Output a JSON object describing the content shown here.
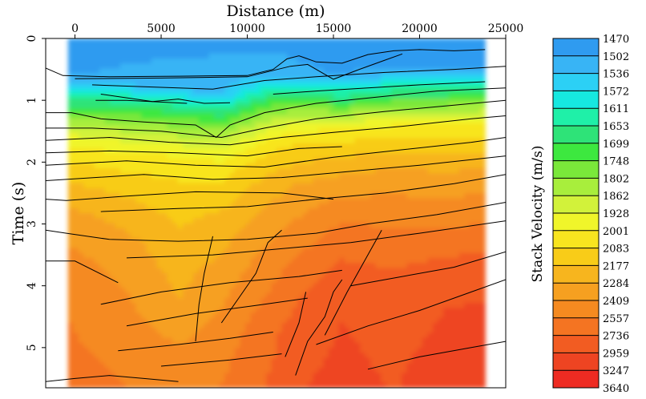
{
  "chart_data": {
    "type": "heatmap",
    "title": "",
    "xlabel": "Distance (m)",
    "ylabel": "Time (s)",
    "xlim": [
      -1700,
      25000
    ],
    "ylim": [
      0,
      5.65
    ],
    "x_ticks": [
      {
        "value": 0,
        "label": "0"
      },
      {
        "value": 5000,
        "label": "5000"
      },
      {
        "value": 10000,
        "label": "10000"
      },
      {
        "value": 15000,
        "label": "15000"
      },
      {
        "value": 20000,
        "label": "20000"
      },
      {
        "value": 25000,
        "label": "25000"
      }
    ],
    "y_ticks": [
      {
        "value": 0,
        "label": "0"
      },
      {
        "value": 1,
        "label": "1"
      },
      {
        "value": 2,
        "label": "2"
      },
      {
        "value": 3,
        "label": "3"
      },
      {
        "value": 4,
        "label": "4"
      },
      {
        "value": 5,
        "label": "5"
      }
    ],
    "data_extent_x": [
      -400,
      23800
    ],
    "colorbar": {
      "label": "Stack Velocity (m/s)",
      "levels": [
        "1470",
        "1502",
        "1536",
        "1572",
        "1611",
        "1653",
        "1699",
        "1748",
        "1802",
        "1862",
        "1928",
        "2001",
        "2083",
        "2177",
        "2284",
        "2409",
        "2557",
        "2736",
        "2959",
        "3247",
        "3640"
      ],
      "colors": [
        "#2f9bf0",
        "#38b4f5",
        "#2cd0f5",
        "#16e8e0",
        "#1ff0a8",
        "#2ee378",
        "#3de83f",
        "#7ae83a",
        "#a8ee3c",
        "#d2f23a",
        "#f0f52a",
        "#f8e51f",
        "#f8cc18",
        "#f7b51e",
        "#f6a020",
        "#f58a20",
        "#f47422",
        "#f25c22",
        "#ee4422",
        "#ee2b22"
      ]
    },
    "velocity_field": {
      "description_units": "velocity in m/s vs time in s, per distance column",
      "columns": [
        {
          "x": -400,
          "profile": [
            [
              0,
              1490
            ],
            [
              0.6,
              1500
            ],
            [
              1.1,
              1700
            ],
            [
              1.6,
              1950
            ],
            [
              2.2,
              2150
            ],
            [
              2.9,
              2330
            ],
            [
              3.6,
              2450
            ],
            [
              4.6,
              2560
            ],
            [
              5.65,
              2620
            ]
          ]
        },
        {
          "x": 3000,
          "profile": [
            [
              0,
              1490
            ],
            [
              0.7,
              1510
            ],
            [
              1.3,
              1780
            ],
            [
              1.9,
              2020
            ],
            [
              2.6,
              2180
            ],
            [
              3.3,
              2320
            ],
            [
              4.2,
              2420
            ],
            [
              5.0,
              2500
            ],
            [
              5.65,
              2560
            ]
          ]
        },
        {
          "x": 6000,
          "profile": [
            [
              0,
              1490
            ],
            [
              0.8,
              1520
            ],
            [
              1.4,
              1790
            ],
            [
              2.0,
              2040
            ],
            [
              2.8,
              2150
            ],
            [
              3.6,
              2230
            ],
            [
              4.4,
              2300
            ],
            [
              5.0,
              2420
            ],
            [
              5.65,
              2500
            ]
          ]
        },
        {
          "x": 8500,
          "profile": [
            [
              0,
              1490
            ],
            [
              0.9,
              1530
            ],
            [
              1.5,
              1810
            ],
            [
              2.1,
              2040
            ],
            [
              2.9,
              2200
            ],
            [
              3.8,
              2330
            ],
            [
              4.6,
              2440
            ],
            [
              5.65,
              2560
            ]
          ]
        },
        {
          "x": 11500,
          "profile": [
            [
              0,
              1490
            ],
            [
              0.6,
              1520
            ],
            [
              1.1,
              1760
            ],
            [
              1.7,
              2040
            ],
            [
              2.4,
              2240
            ],
            [
              3.2,
              2400
            ],
            [
              4.0,
              2560
            ],
            [
              4.8,
              2700
            ],
            [
              5.65,
              2780
            ]
          ]
        },
        {
          "x": 13000,
          "profile": [
            [
              0,
              1490
            ],
            [
              0.6,
              1510
            ],
            [
              1.0,
              1720
            ],
            [
              1.6,
              2050
            ],
            [
              2.4,
              2300
            ],
            [
              3.2,
              2480
            ],
            [
              4.0,
              2680
            ],
            [
              4.8,
              2860
            ],
            [
              5.65,
              2950
            ]
          ]
        },
        {
          "x": 15500,
          "profile": [
            [
              0,
              1490
            ],
            [
              0.6,
              1500
            ],
            [
              1.0,
              1680
            ],
            [
              1.5,
              2020
            ],
            [
              2.3,
              2320
            ],
            [
              3.0,
              2560
            ],
            [
              3.8,
              2800
            ],
            [
              4.6,
              2960
            ],
            [
              5.65,
              3020
            ]
          ]
        },
        {
          "x": 18500,
          "profile": [
            [
              0,
              1490
            ],
            [
              0.5,
              1500
            ],
            [
              0.9,
              1680
            ],
            [
              1.4,
              2000
            ],
            [
              2.2,
              2320
            ],
            [
              3.0,
              2540
            ],
            [
              3.8,
              2760
            ],
            [
              4.8,
              2900
            ],
            [
              5.65,
              2950
            ]
          ]
        },
        {
          "x": 21500,
          "profile": [
            [
              0,
              1490
            ],
            [
              0.5,
              1500
            ],
            [
              0.9,
              1680
            ],
            [
              1.4,
              2000
            ],
            [
              2.2,
              2300
            ],
            [
              3.0,
              2520
            ],
            [
              3.6,
              2760
            ],
            [
              4.4,
              2960
            ],
            [
              5.65,
              3060
            ]
          ]
        },
        {
          "x": 23800,
          "profile": [
            [
              0,
              1490
            ],
            [
              0.5,
              1500
            ],
            [
              0.9,
              1690
            ],
            [
              1.4,
              2010
            ],
            [
              2.2,
              2320
            ],
            [
              3.0,
              2560
            ],
            [
              3.6,
              2800
            ],
            [
              4.4,
              3000
            ],
            [
              5.65,
              3100
            ]
          ]
        }
      ]
    },
    "horizons": [
      [
        [
          -1700,
          0.48
        ],
        [
          -700,
          0.6
        ],
        [
          2000,
          0.62
        ],
        [
          6000,
          0.61
        ],
        [
          10000,
          0.6
        ],
        [
          11500,
          0.5
        ],
        [
          12300,
          0.33
        ],
        [
          13000,
          0.28
        ],
        [
          14000,
          0.38
        ],
        [
          15500,
          0.4
        ],
        [
          17000,
          0.26
        ],
        [
          18500,
          0.2
        ],
        [
          20000,
          0.18
        ],
        [
          22000,
          0.2
        ],
        [
          23800,
          0.18
        ]
      ],
      [
        [
          0,
          0.65
        ],
        [
          5000,
          0.64
        ],
        [
          10000,
          0.62
        ],
        [
          12500,
          0.45
        ],
        [
          13500,
          0.42
        ],
        [
          15000,
          0.66
        ],
        [
          16500,
          0.5
        ],
        [
          18000,
          0.35
        ],
        [
          19000,
          0.25
        ]
      ],
      [
        [
          1000,
          0.75
        ],
        [
          4000,
          0.78
        ],
        [
          8000,
          0.82
        ],
        [
          11000,
          0.68
        ],
        [
          14000,
          0.62
        ],
        [
          18000,
          0.55
        ],
        [
          22000,
          0.5
        ],
        [
          25000,
          0.45
        ]
      ],
      [
        [
          1500,
          0.9
        ],
        [
          4500,
          1.02
        ],
        [
          6000,
          0.98
        ],
        [
          7500,
          1.05
        ],
        [
          9000,
          1.04
        ]
      ],
      [
        [
          1200,
          1.0
        ],
        [
          3000,
          1.0
        ],
        [
          6500,
          1.05
        ]
      ],
      [
        [
          11500,
          0.9
        ],
        [
          14000,
          0.85
        ],
        [
          17000,
          0.8
        ],
        [
          20000,
          0.75
        ],
        [
          23800,
          0.7
        ]
      ],
      [
        [
          -1700,
          1.2
        ],
        [
          -200,
          1.2
        ],
        [
          1500,
          1.3
        ],
        [
          4000,
          1.35
        ],
        [
          7000,
          1.4
        ],
        [
          8200,
          1.6
        ],
        [
          9000,
          1.4
        ],
        [
          11000,
          1.2
        ],
        [
          14000,
          1.05
        ],
        [
          17500,
          0.95
        ],
        [
          21000,
          0.85
        ],
        [
          25000,
          0.8
        ]
      ],
      [
        [
          -1700,
          1.45
        ],
        [
          1000,
          1.45
        ],
        [
          5000,
          1.5
        ],
        [
          8500,
          1.6
        ],
        [
          11000,
          1.45
        ],
        [
          14000,
          1.3
        ],
        [
          18000,
          1.18
        ],
        [
          22000,
          1.08
        ],
        [
          25000,
          1.0
        ]
      ],
      [
        [
          -1700,
          1.65
        ],
        [
          2000,
          1.6
        ],
        [
          5500,
          1.68
        ],
        [
          9000,
          1.72
        ],
        [
          12000,
          1.6
        ],
        [
          15000,
          1.52
        ],
        [
          19000,
          1.42
        ],
        [
          23000,
          1.3
        ],
        [
          25000,
          1.25
        ]
      ],
      [
        [
          -1700,
          1.85
        ],
        [
          2000,
          1.82
        ],
        [
          6000,
          1.85
        ],
        [
          10000,
          1.9
        ],
        [
          13000,
          1.78
        ],
        [
          15500,
          1.75
        ]
      ],
      [
        [
          -1700,
          2.05
        ],
        [
          3000,
          1.98
        ],
        [
          7000,
          2.05
        ],
        [
          11000,
          2.08
        ],
        [
          15000,
          1.92
        ],
        [
          19000,
          1.8
        ],
        [
          23000,
          1.68
        ],
        [
          25000,
          1.6
        ]
      ],
      [
        [
          -1700,
          2.3
        ],
        [
          4000,
          2.2
        ],
        [
          8000,
          2.28
        ],
        [
          12000,
          2.25
        ],
        [
          16000,
          2.15
        ],
        [
          20000,
          2.05
        ],
        [
          25000,
          1.9
        ]
      ],
      [
        [
          -1700,
          2.6
        ],
        [
          -500,
          2.62
        ],
        [
          3000,
          2.55
        ],
        [
          7000,
          2.48
        ],
        [
          12000,
          2.5
        ],
        [
          15000,
          2.6
        ]
      ],
      [
        [
          1500,
          2.8
        ],
        [
          6000,
          2.75
        ],
        [
          10000,
          2.72
        ],
        [
          14000,
          2.6
        ],
        [
          18000,
          2.5
        ],
        [
          22000,
          2.35
        ],
        [
          25000,
          2.2
        ]
      ],
      [
        [
          -1700,
          3.1
        ],
        [
          -500,
          3.15
        ],
        [
          2000,
          3.25
        ],
        [
          6000,
          3.28
        ],
        [
          10000,
          3.25
        ],
        [
          14000,
          3.15
        ],
        [
          17000,
          3.0
        ],
        [
          21000,
          2.85
        ],
        [
          25000,
          2.65
        ]
      ],
      [
        [
          3000,
          3.55
        ],
        [
          8000,
          3.5
        ],
        [
          12000,
          3.4
        ],
        [
          16000,
          3.3
        ],
        [
          20000,
          3.15
        ],
        [
          25000,
          2.95
        ]
      ],
      [
        [
          -1700,
          3.6
        ],
        [
          0,
          3.6
        ],
        [
          2500,
          3.95
        ]
      ],
      [
        [
          1500,
          4.3
        ],
        [
          5000,
          4.1
        ],
        [
          9000,
          3.95
        ],
        [
          13000,
          3.85
        ],
        [
          15500,
          3.75
        ]
      ],
      [
        [
          16000,
          4.0
        ],
        [
          19000,
          3.85
        ],
        [
          22000,
          3.7
        ],
        [
          25000,
          3.45
        ]
      ],
      [
        [
          3000,
          4.65
        ],
        [
          7000,
          4.45
        ],
        [
          11000,
          4.3
        ],
        [
          13500,
          4.2
        ]
      ],
      [
        [
          14000,
          4.95
        ],
        [
          17000,
          4.65
        ],
        [
          20000,
          4.4
        ],
        [
          23000,
          4.1
        ],
        [
          25000,
          3.9
        ]
      ],
      [
        [
          2500,
          5.05
        ],
        [
          6000,
          4.95
        ],
        [
          9000,
          4.85
        ],
        [
          11500,
          4.75
        ]
      ],
      [
        [
          5000,
          5.3
        ],
        [
          9000,
          5.2
        ],
        [
          12000,
          5.1
        ]
      ],
      [
        [
          17000,
          5.35
        ],
        [
          20000,
          5.15
        ],
        [
          23000,
          5.0
        ],
        [
          25000,
          4.9
        ]
      ],
      [
        [
          -1700,
          5.55
        ],
        [
          0,
          5.5
        ],
        [
          2000,
          5.45
        ],
        [
          4000,
          5.5
        ],
        [
          6000,
          5.55
        ]
      ],
      [
        [
          12800,
          5.45
        ],
        [
          13500,
          4.9
        ],
        [
          14500,
          4.5
        ],
        [
          15000,
          4.1
        ],
        [
          15500,
          3.9
        ]
      ],
      [
        [
          14500,
          4.8
        ],
        [
          15800,
          4.1
        ],
        [
          17000,
          3.5
        ],
        [
          17800,
          3.1
        ]
      ],
      [
        [
          12200,
          5.15
        ],
        [
          13000,
          4.6
        ],
        [
          13400,
          4.1
        ]
      ],
      [
        [
          8500,
          4.6
        ],
        [
          9500,
          4.2
        ],
        [
          10500,
          3.8
        ],
        [
          11200,
          3.3
        ],
        [
          12000,
          3.1
        ]
      ],
      [
        [
          7000,
          4.9
        ],
        [
          7200,
          4.3
        ],
        [
          7500,
          3.8
        ],
        [
          8000,
          3.2
        ]
      ]
    ]
  }
}
